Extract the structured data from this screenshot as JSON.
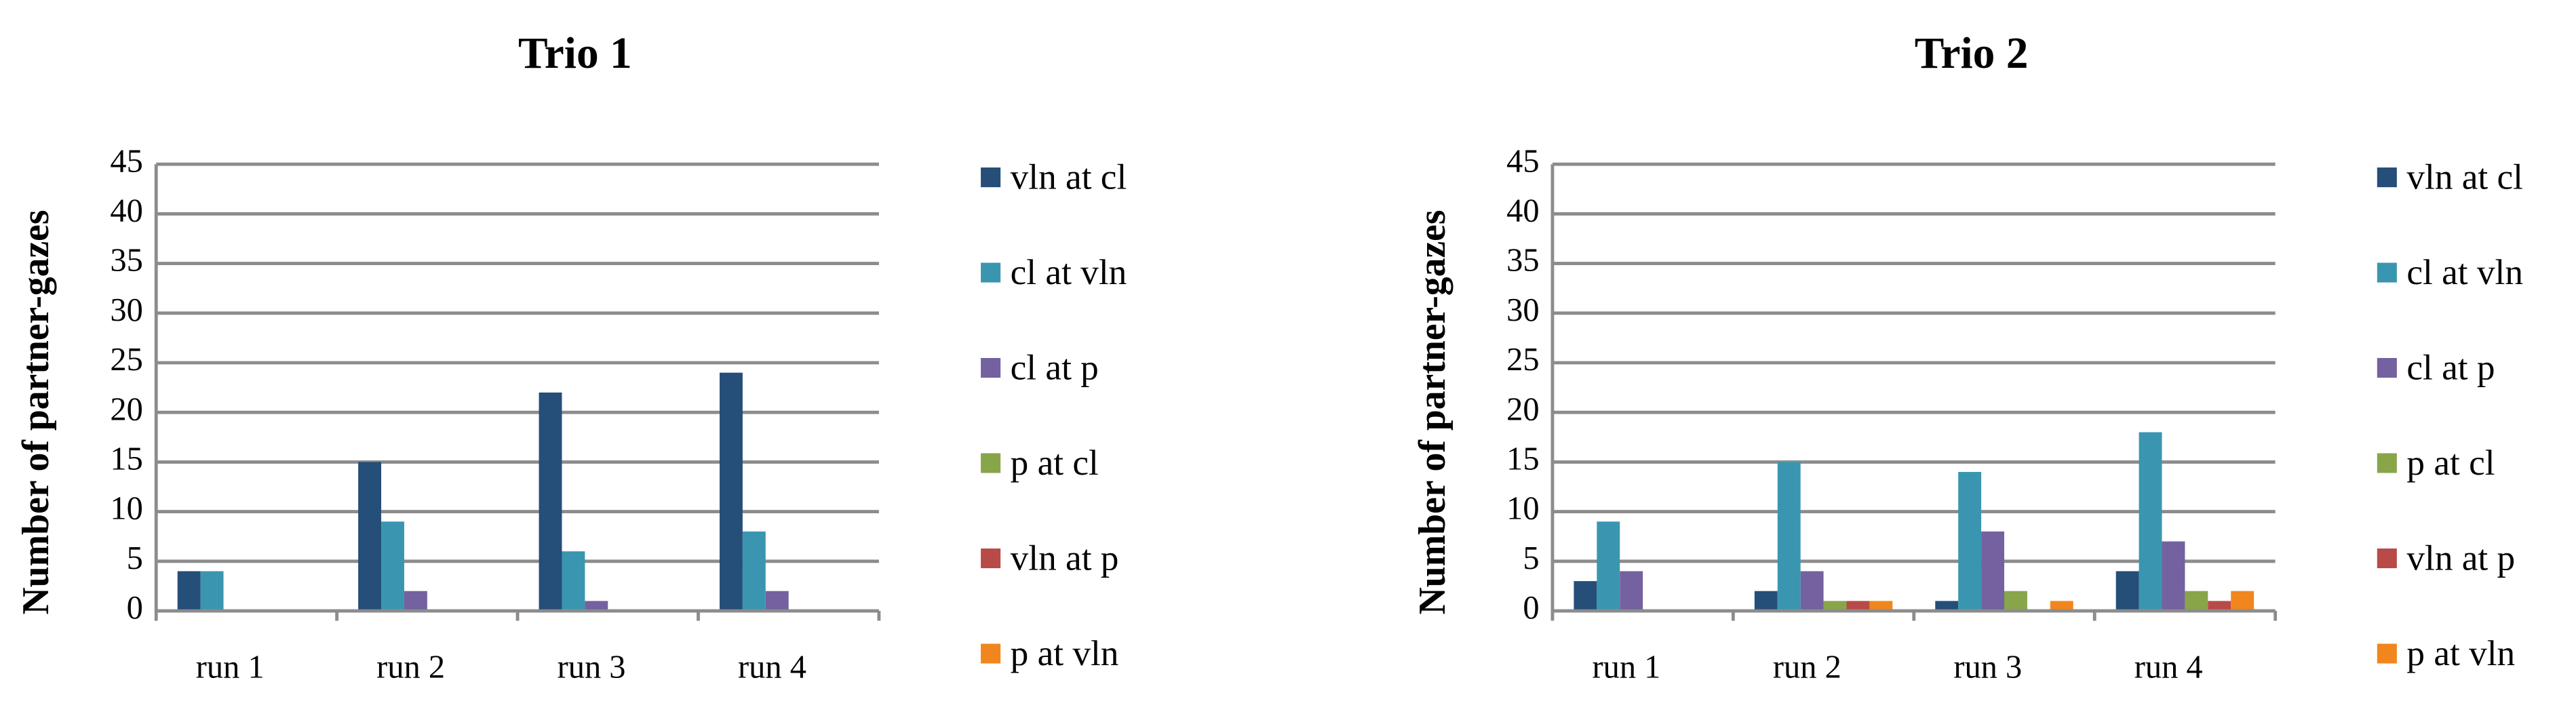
{
  "chart_data": [
    {
      "type": "bar",
      "title": "Trio 1",
      "y_label": "Number of partner-gazes",
      "categories": [
        "run 1",
        "run 2",
        "run 3",
        "run 4"
      ],
      "series": [
        {
          "name": "vln at cl",
          "color": "#254e79",
          "values": [
            4,
            15,
            22,
            24
          ]
        },
        {
          "name": "cl at vln",
          "color": "#3a96b0",
          "values": [
            4,
            9,
            6,
            8
          ]
        },
        {
          "name": "cl at p",
          "color": "#7461a0",
          "values": [
            0,
            2,
            1,
            2
          ]
        },
        {
          "name": "p at cl",
          "color": "#88a54a",
          "values": [
            0,
            0,
            0,
            0
          ]
        },
        {
          "name": "vln at p",
          "color": "#b84b47",
          "values": [
            0,
            0,
            0,
            0
          ]
        },
        {
          "name": "p at vln",
          "color": "#f0861d",
          "values": [
            0,
            0,
            0,
            0
          ]
        }
      ],
      "ylim": [
        0,
        45
      ],
      "yticks": [
        0,
        5,
        10,
        15,
        20,
        25,
        30,
        35,
        40,
        45
      ],
      "grid": true,
      "legend": "right"
    },
    {
      "type": "bar",
      "title": "Trio 2",
      "y_label": "Number of partner-gazes",
      "categories": [
        "run 1",
        "run 2",
        "run 3",
        "run 4"
      ],
      "series": [
        {
          "name": "vln at cl",
          "color": "#254e79",
          "values": [
            3,
            2,
            1,
            4
          ]
        },
        {
          "name": "cl at vln",
          "color": "#3a96b0",
          "values": [
            9,
            15,
            14,
            18
          ]
        },
        {
          "name": "cl at p",
          "color": "#7461a0",
          "values": [
            4,
            4,
            8,
            7
          ]
        },
        {
          "name": "p at cl",
          "color": "#88a54a",
          "values": [
            0,
            1,
            2,
            2
          ]
        },
        {
          "name": "vln at p",
          "color": "#b84b47",
          "values": [
            0,
            1,
            0,
            1
          ]
        },
        {
          "name": "p at vln",
          "color": "#f0861d",
          "values": [
            0,
            1,
            1,
            2
          ]
        }
      ],
      "ylim": [
        0,
        45
      ],
      "yticks": [
        0,
        5,
        10,
        15,
        20,
        25,
        30,
        35,
        40,
        45
      ],
      "grid": true,
      "legend": "right"
    }
  ]
}
